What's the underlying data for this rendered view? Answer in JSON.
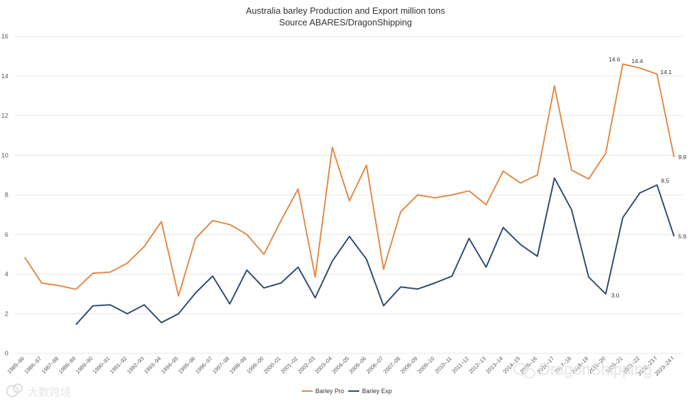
{
  "chart_data": {
    "type": "line",
    "title": "Australia barley Production and Export million tons",
    "subtitle": "Source ABARES/DragonShipping",
    "ylim": [
      0,
      16
    ],
    "yticks": [
      0,
      2,
      4,
      6,
      8,
      10,
      12,
      14,
      16
    ],
    "grid": true,
    "legend_position": "bottom-center",
    "categories": [
      "1985–86",
      "1986–87",
      "1987–88",
      "1988–89",
      "1989–90",
      "1990–91",
      "1991–92",
      "1992–93",
      "1993–94",
      "1994–95",
      "1995–96",
      "1996–97",
      "1997–98",
      "1998–99",
      "1999–00",
      "2000–01",
      "2001–02",
      "2002–03",
      "2003–04",
      "2004–05",
      "2005–06",
      "2006–07",
      "2007–08",
      "2008–09",
      "2009–10",
      "2010–11",
      "2011–12",
      "2012–13",
      "2013–14",
      "2014–15",
      "2015–16",
      "2016–17",
      "2017–18",
      "2018–19",
      "2019–20",
      "2020–21",
      "2021–22",
      "2022–23 f",
      "2023–24 f"
    ],
    "series": [
      {
        "name": "Barley Pro",
        "color": "#E08A45",
        "values": [
          4.85,
          3.55,
          3.42,
          3.23,
          4.05,
          4.1,
          4.55,
          5.4,
          6.65,
          2.9,
          5.8,
          6.7,
          6.5,
          6.0,
          5.0,
          6.7,
          8.3,
          3.85,
          10.4,
          7.7,
          9.5,
          4.25,
          7.15,
          8.0,
          7.85,
          8.0,
          8.2,
          7.5,
          9.2,
          8.6,
          9.0,
          13.5,
          9.25,
          8.8,
          10.1,
          14.6,
          14.4,
          14.1,
          9.9
        ]
      },
      {
        "name": "Barley Exp",
        "color": "#2E4A70",
        "values": [
          null,
          null,
          null,
          1.45,
          2.4,
          2.45,
          2.0,
          2.45,
          1.55,
          2.0,
          3.05,
          3.9,
          2.5,
          4.2,
          3.3,
          3.55,
          4.35,
          2.8,
          4.65,
          5.9,
          4.75,
          2.4,
          3.35,
          3.25,
          3.55,
          3.9,
          5.8,
          4.35,
          6.35,
          5.5,
          4.9,
          8.85,
          7.25,
          3.85,
          3.0,
          6.85,
          8.1,
          8.5,
          5.9
        ]
      }
    ],
    "data_labels": [
      {
        "series": "Barley Pro",
        "index": 35,
        "text": "14.6"
      },
      {
        "series": "Barley Pro",
        "index": 36,
        "text": "14.4"
      },
      {
        "series": "Barley Pro",
        "index": 37,
        "text": "14.1"
      },
      {
        "series": "Barley Pro",
        "index": 38,
        "text": "9.9"
      },
      {
        "series": "Barley Exp",
        "index": 34,
        "text": "3.0"
      },
      {
        "series": "Barley Exp",
        "index": 37,
        "text": "8.5"
      },
      {
        "series": "Barley Exp",
        "index": 38,
        "text": "5.9"
      }
    ]
  },
  "watermark": {
    "left_text": "大数跨境",
    "right_text": "DragonShipping"
  }
}
